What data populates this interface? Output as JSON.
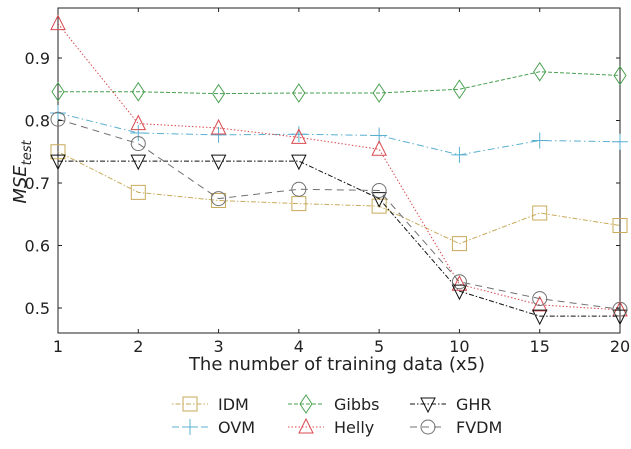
{
  "chart_data": {
    "type": "line",
    "title": "",
    "xlabel": "The number of training data (x5)",
    "ylabel": "MSE",
    "ylabel_subscript": "test",
    "categories": [
      "1",
      "2",
      "3",
      "4",
      "5",
      "10",
      "15",
      "20"
    ],
    "ylim": [
      0.46,
      0.98
    ],
    "yticks": [
      "0.5",
      "0.6",
      "0.7",
      "0.8",
      "0.9"
    ],
    "ytick_values": [
      0.5,
      0.6,
      0.7,
      0.8,
      0.9
    ],
    "legend_position": "bottom-center",
    "series": [
      {
        "name": "IDM",
        "color": "#c8aa5a",
        "marker": "square",
        "dash": "1.5,2,5,2",
        "values": [
          0.75,
          0.685,
          0.672,
          0.667,
          0.663,
          0.603,
          0.652,
          0.632
        ]
      },
      {
        "name": "OVM",
        "color": "#5ab0d0",
        "marker": "plus",
        "dash": "7,3,1.5,3",
        "values": [
          0.812,
          0.78,
          0.777,
          0.778,
          0.776,
          0.745,
          0.768,
          0.766
        ]
      },
      {
        "name": "Gibbs",
        "color": "#4aa050",
        "marker": "diamond",
        "dash": "4,2",
        "values": [
          0.846,
          0.846,
          0.843,
          0.844,
          0.844,
          0.85,
          0.878,
          0.872
        ]
      },
      {
        "name": "Helly",
        "color": "#d84a50",
        "marker": "triangle-up",
        "dash": "1.5,2",
        "values": [
          0.955,
          0.795,
          0.788,
          0.773,
          0.754,
          0.538,
          0.505,
          0.497
        ]
      },
      {
        "name": "GHR",
        "color": "#111111",
        "marker": "triangle-down",
        "dash": "5,2,1.5,2",
        "values": [
          0.735,
          0.735,
          0.735,
          0.735,
          0.675,
          0.527,
          0.487,
          0.487
        ]
      },
      {
        "name": "FVDM",
        "color": "#707070",
        "marker": "circle",
        "dash": "7,5",
        "values": [
          0.802,
          0.763,
          0.675,
          0.69,
          0.688,
          0.542,
          0.515,
          0.498
        ]
      }
    ]
  }
}
